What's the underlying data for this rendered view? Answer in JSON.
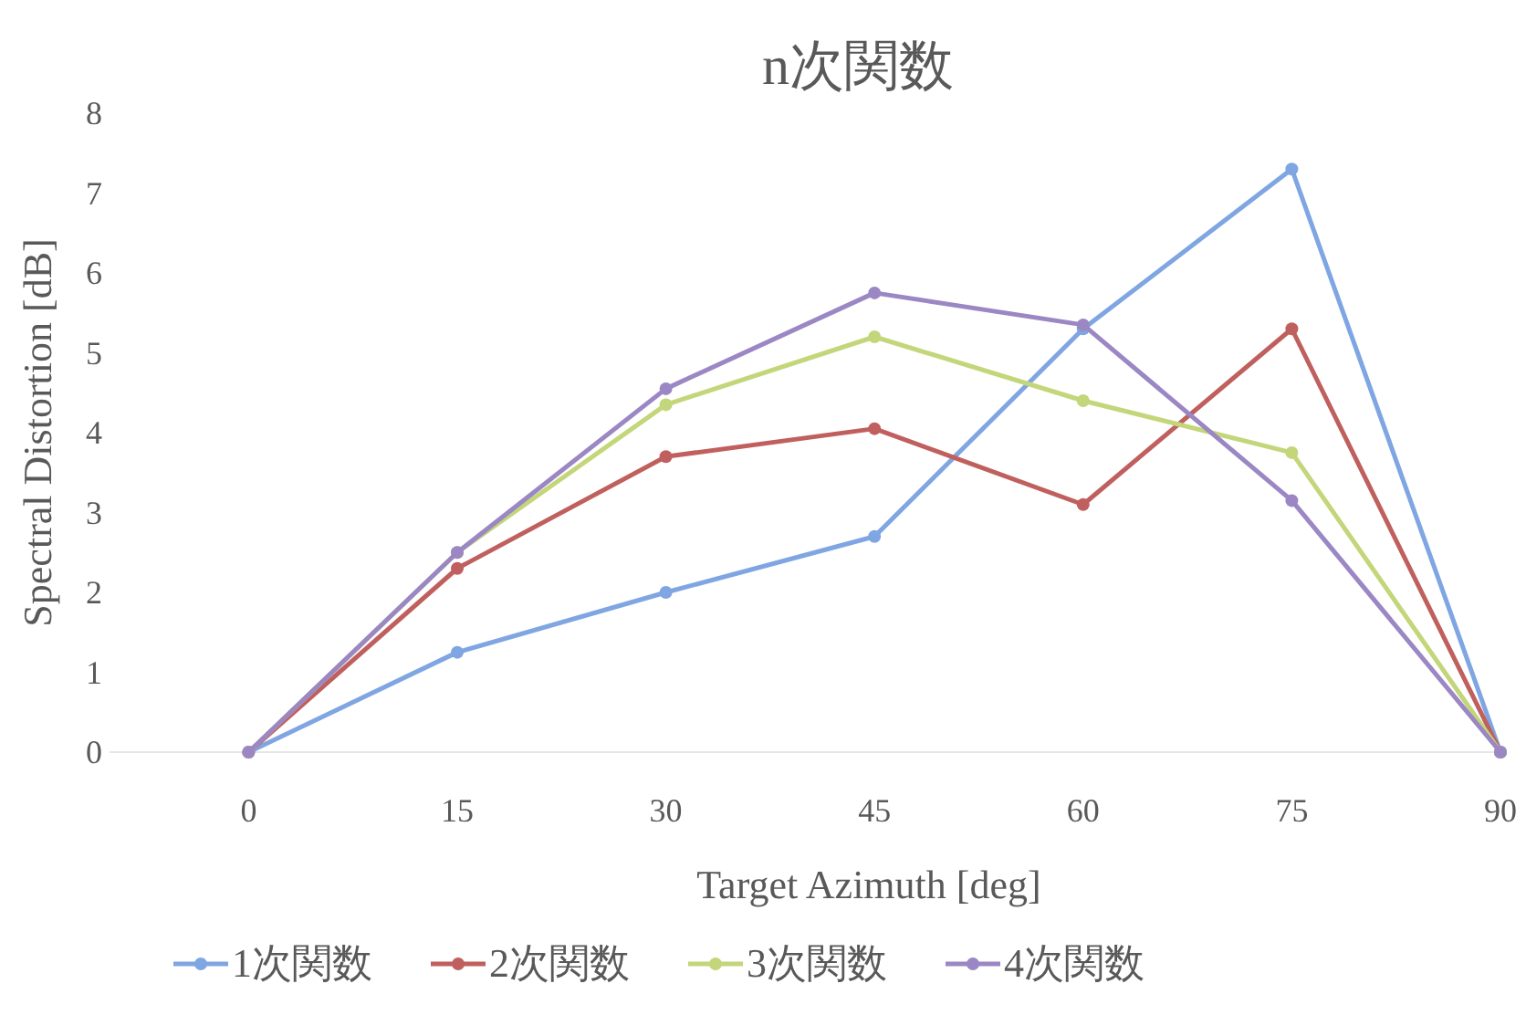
{
  "chart_data": {
    "type": "line",
    "title": "n次関数",
    "xlabel": "Target Azimuth [deg]",
    "ylabel": "Spectral Distortion [dB]",
    "x": [
      0,
      15,
      30,
      45,
      60,
      75,
      90
    ],
    "xlim": [
      -10,
      90
    ],
    "xticks": [
      0,
      15,
      30,
      45,
      60,
      75,
      90
    ],
    "ylim": [
      0,
      8
    ],
    "yticks": [
      0,
      1,
      2,
      3,
      4,
      5,
      6,
      7,
      8
    ],
    "grid": false,
    "legend": "bottom",
    "marker": "circle",
    "line_style": "solid",
    "series": [
      {
        "name": "1次関数",
        "color": "#7fa6e2",
        "values": [
          0,
          1.25,
          2.0,
          2.7,
          5.3,
          7.3,
          0
        ]
      },
      {
        "name": "2次関数",
        "color": "#c0605e",
        "values": [
          0,
          2.3,
          3.7,
          4.05,
          3.1,
          5.3,
          0
        ]
      },
      {
        "name": "3次関数",
        "color": "#c3d67a",
        "values": [
          0,
          2.5,
          4.35,
          5.2,
          4.4,
          3.75,
          0
        ]
      },
      {
        "name": "4次関数",
        "color": "#9b87c4",
        "values": [
          0,
          2.5,
          4.55,
          5.75,
          5.35,
          3.15,
          0
        ]
      }
    ]
  }
}
